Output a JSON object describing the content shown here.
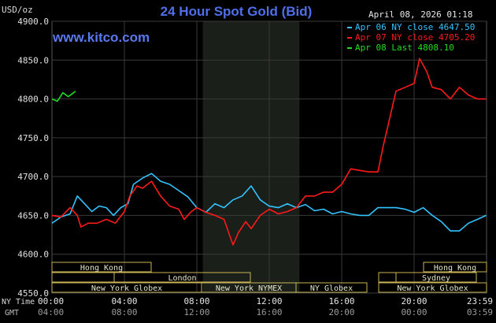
{
  "header": {
    "title": "24 Hour Spot Gold (Bid)",
    "watermark": "www.kitco.com",
    "unit": "USD/oz",
    "timestamp": "April 08, 2026 01:18"
  },
  "legend": [
    {
      "label": "Apr 06 NY close 4647.50",
      "color": "#33c3ff"
    },
    {
      "label": "Apr 07 NY close 4705.20",
      "color": "#ff1a1a"
    },
    {
      "label": "Apr 08 Last 4808.10",
      "color": "#22dd22"
    }
  ],
  "axis_labels": {
    "ny_time": "NY Time",
    "gmt": "GMT"
  },
  "sessions": {
    "hong_kong": "Hong Kong",
    "london": "London",
    "new_york_globex": "New York Globex",
    "new_york_nymex": "New York NYMEX",
    "ny_globex": "NY Globex",
    "sydney": "Sydney"
  },
  "colors": {
    "background": "#000000",
    "grid": "#3a3a3a",
    "shaded_session": "#1a1f1a",
    "session_bar_border": "#c9b458"
  },
  "chart_data": {
    "type": "line",
    "ylim": [
      4550,
      4900
    ],
    "y_ticks": [
      "4550.0",
      "4600.0",
      "4650.0",
      "4700.0",
      "4750.0",
      "4800.0",
      "4850.0",
      "4900.0"
    ],
    "y_tick_values": [
      4550,
      4600,
      4650,
      4700,
      4750,
      4800,
      4850,
      4900
    ],
    "x_range_hours": [
      0,
      24
    ],
    "x_ticks": [
      "00:00",
      "04:00",
      "08:00",
      "12:00",
      "16:00",
      "20:00",
      "23:59"
    ],
    "x_tick_hours": [
      0,
      4,
      8,
      12,
      16,
      20,
      23.98
    ],
    "gmt_ticks": [
      "04:00",
      "08:00",
      "12:00",
      "16:00",
      "20:00",
      "00:00",
      "03:59"
    ],
    "nymex_shaded_hours": [
      8.33,
      13.67
    ],
    "series": [
      {
        "name": "Apr 06 NY close 4647.50",
        "color": "#33c3ff",
        "points": [
          [
            0,
            4640
          ],
          [
            0.5,
            4648
          ],
          [
            1,
            4652
          ],
          [
            1.4,
            4675
          ],
          [
            1.8,
            4665
          ],
          [
            2.2,
            4655
          ],
          [
            2.6,
            4662
          ],
          [
            3,
            4660
          ],
          [
            3.4,
            4650
          ],
          [
            3.8,
            4660
          ],
          [
            4.2,
            4665
          ],
          [
            4.5,
            4690
          ],
          [
            5,
            4698
          ],
          [
            5.5,
            4704
          ],
          [
            6,
            4694
          ],
          [
            6.5,
            4690
          ],
          [
            7,
            4682
          ],
          [
            7.5,
            4674
          ],
          [
            8,
            4660
          ],
          [
            8.5,
            4654
          ],
          [
            9,
            4665
          ],
          [
            9.5,
            4660
          ],
          [
            10,
            4670
          ],
          [
            10.5,
            4675
          ],
          [
            11,
            4688
          ],
          [
            11.5,
            4670
          ],
          [
            12,
            4662
          ],
          [
            12.5,
            4660
          ],
          [
            13,
            4665
          ],
          [
            13.5,
            4660
          ],
          [
            14,
            4664
          ],
          [
            14.5,
            4656
          ],
          [
            15,
            4658
          ],
          [
            15.5,
            4652
          ],
          [
            16,
            4655
          ],
          [
            16.5,
            4652
          ],
          [
            17,
            4650
          ],
          [
            17.5,
            4650
          ],
          [
            18,
            4660
          ],
          [
            18.5,
            4660
          ],
          [
            19,
            4660
          ],
          [
            19.5,
            4658
          ],
          [
            20,
            4654
          ],
          [
            20.5,
            4660
          ],
          [
            21,
            4650
          ],
          [
            21.5,
            4642
          ],
          [
            22,
            4630
          ],
          [
            22.5,
            4630
          ],
          [
            23,
            4640
          ],
          [
            23.5,
            4645
          ],
          [
            23.98,
            4650
          ]
        ]
      },
      {
        "name": "Apr 07 NY close 4705.20",
        "color": "#ff1a1a",
        "points": [
          [
            0,
            4650
          ],
          [
            0.5,
            4648
          ],
          [
            1,
            4660
          ],
          [
            1.4,
            4650
          ],
          [
            1.6,
            4635
          ],
          [
            2,
            4640
          ],
          [
            2.5,
            4640
          ],
          [
            3,
            4645
          ],
          [
            3.5,
            4640
          ],
          [
            4,
            4655
          ],
          [
            4.3,
            4675
          ],
          [
            4.7,
            4688
          ],
          [
            5,
            4685
          ],
          [
            5.5,
            4694
          ],
          [
            6,
            4675
          ],
          [
            6.5,
            4662
          ],
          [
            7,
            4658
          ],
          [
            7.3,
            4645
          ],
          [
            7.7,
            4655
          ],
          [
            8,
            4660
          ],
          [
            8.5,
            4654
          ],
          [
            9,
            4650
          ],
          [
            9.5,
            4645
          ],
          [
            10,
            4612
          ],
          [
            10.3,
            4628
          ],
          [
            10.7,
            4642
          ],
          [
            11,
            4633
          ],
          [
            11.5,
            4650
          ],
          [
            12,
            4658
          ],
          [
            12.5,
            4652
          ],
          [
            13,
            4655
          ],
          [
            13.5,
            4660
          ],
          [
            14,
            4675
          ],
          [
            14.5,
            4675
          ],
          [
            15,
            4680
          ],
          [
            15.5,
            4680
          ],
          [
            16,
            4690
          ],
          [
            16.5,
            4710
          ],
          [
            17,
            4708
          ],
          [
            17.5,
            4706
          ],
          [
            18,
            4706
          ],
          [
            18.3,
            4740
          ],
          [
            18.7,
            4780
          ],
          [
            19,
            4810
          ],
          [
            19.5,
            4815
          ],
          [
            20,
            4820
          ],
          [
            20.3,
            4852
          ],
          [
            20.7,
            4835
          ],
          [
            21,
            4815
          ],
          [
            21.5,
            4812
          ],
          [
            22,
            4800
          ],
          [
            22.5,
            4815
          ],
          [
            23,
            4805
          ],
          [
            23.5,
            4800
          ],
          [
            23.98,
            4800
          ]
        ]
      },
      {
        "name": "Apr 08 Last 4808.10",
        "color": "#22dd22",
        "points": [
          [
            0,
            4800
          ],
          [
            0.3,
            4797
          ],
          [
            0.6,
            4808
          ],
          [
            0.9,
            4803
          ],
          [
            1.2,
            4808
          ],
          [
            1.3,
            4810
          ]
        ]
      }
    ]
  }
}
